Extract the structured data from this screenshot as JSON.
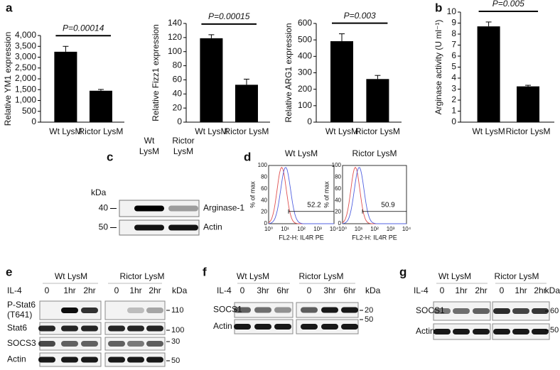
{
  "chart_data": [
    {
      "type": "bar",
      "panel": "a",
      "ylabel": "Relative YM1 expression",
      "categories": [
        "Wt LysM",
        "Rictor LysM"
      ],
      "values": [
        3250,
        1450
      ],
      "errors": [
        250,
        60
      ],
      "color": "#000000",
      "ylim": [
        0,
        4000
      ],
      "yticks": [
        0,
        500,
        {
          "value": 1000,
          "label": "1,000"
        },
        {
          "value": 1500,
          "label": "1,500"
        },
        {
          "value": 2000,
          "label": "2,000"
        },
        {
          "value": 2500,
          "label": "2,500"
        },
        {
          "value": 3000,
          "label": "3,000"
        },
        {
          "value": 3500,
          "label": "3,500"
        },
        {
          "value": 4000,
          "label": "4,000"
        }
      ],
      "annotation": "P=0.00014"
    },
    {
      "type": "bar",
      "ylabel": "Relative Fizz1 expression",
      "categories": [
        "Wt LysM",
        "Rictor LysM"
      ],
      "values": [
        119,
        53
      ],
      "errors": [
        5,
        8
      ],
      "color": "#000000",
      "ylim": [
        0,
        140
      ],
      "yticks": [
        0,
        20,
        40,
        60,
        80,
        100,
        120,
        140
      ],
      "annotation": "P=0.00015"
    },
    {
      "type": "bar",
      "ylabel": "Relative ARG1 expression",
      "categories": [
        "Wt LysM",
        "Rictor LysM"
      ],
      "values": [
        492,
        262
      ],
      "errors": [
        45,
        22
      ],
      "color": "#000000",
      "ylim": [
        0,
        600
      ],
      "yticks": [
        0,
        100,
        200,
        300,
        400,
        500,
        600
      ],
      "annotation": "P=0.003"
    },
    {
      "type": "bar",
      "panel": "b",
      "ylabel": "Arginase activity (U ml⁻¹)",
      "categories": [
        "Wt LysM",
        "Rictor LysM"
      ],
      "values": [
        8.7,
        3.25
      ],
      "errors": [
        0.4,
        0.1
      ],
      "color": "#000000",
      "ylim": [
        0,
        10
      ],
      "yticks": [
        0,
        1,
        2,
        3,
        4,
        5,
        6,
        7,
        8,
        9,
        10
      ],
      "annotation": "P=0.005"
    }
  ],
  "blots": {
    "c": {
      "panel": "c",
      "unit": "kDa",
      "lanes": [
        [
          "Wt",
          "LysM"
        ],
        [
          "Rictor",
          "LysM"
        ]
      ],
      "rows": [
        "Arginase-1",
        "Actin"
      ],
      "markers": [
        "40",
        "50"
      ]
    },
    "e": {
      "panel": "e",
      "groups": [
        "Wt LysM",
        "Rictor LysM"
      ],
      "treatment": "IL-4",
      "times": [
        "0",
        "1hr",
        "2hr",
        "0",
        "1hr",
        "2hr"
      ],
      "unit": "kDa",
      "rows": [
        [
          "P-Stat6",
          "(T641)"
        ],
        [
          "Stat6"
        ],
        [
          "SOCS3"
        ],
        [
          "Actin"
        ]
      ],
      "markers": [
        "110",
        "100",
        "30",
        "50"
      ]
    },
    "f": {
      "panel": "f",
      "groups": [
        "Wt LysM",
        "Rictor LysM"
      ],
      "treatment": "IL-4",
      "times": [
        "0",
        "3hr",
        "6hr",
        "0",
        "3hr",
        "6hr"
      ],
      "unit": "kDa",
      "rows": [
        [
          "SOCS1"
        ],
        [
          "Actin"
        ]
      ],
      "markers": [
        "20",
        "50"
      ]
    },
    "g": {
      "panel": "g",
      "groups": [
        "Wt LysM",
        "Rictor LysM"
      ],
      "treatment": "IL-4",
      "times": [
        "0",
        "1hr",
        "2hr",
        "0",
        "1hr",
        "2hr"
      ],
      "unit": "kDa",
      "rows": [
        [
          "SOCS1"
        ],
        [
          "Actin"
        ]
      ],
      "markers": [
        "60",
        "50"
      ]
    }
  },
  "flow": {
    "panel": "d",
    "plots": [
      {
        "title": "Wt LysM",
        "gate": 52.2
      },
      {
        "title": "Rictor LysM",
        "gate": 50.9
      }
    ],
    "yticks": [
      0,
      20,
      40,
      60,
      80,
      100
    ],
    "xticks": [
      "10⁰",
      "10¹",
      "10²",
      "10³",
      "10⁴"
    ],
    "ylabel": "% of max",
    "xlabel": "FL2-H: IL4R PE"
  }
}
